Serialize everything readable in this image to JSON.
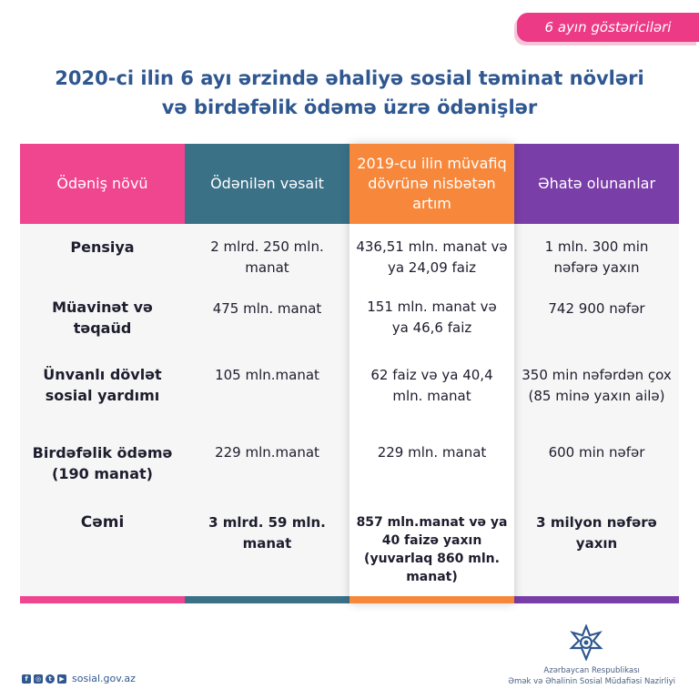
{
  "tag": "6 ayın göstəriciləri",
  "title": {
    "line1": "2020-ci ilin 6 ayı ərzində əhaliyə sosial təminat növləri",
    "line2": "və birdəfəlik ödəmə üzrə ödənişlər"
  },
  "table": {
    "headers": [
      "Ödəniş növü",
      "Ödənilən vəsait",
      "2019-cu ilin müvafiq dövrünə nisbətən artım",
      "Əhatə olunanlar"
    ],
    "rows": [
      [
        "Pensiya",
        "2 mlrd. 250 mln. manat",
        "436,51 mln. manat və ya 24,09 faiz",
        "1 mln. 300 min nəfərə yaxın"
      ],
      [
        "Müavinət və təqaüd",
        "475 mln. manat",
        "151 mln. manat və ya 46,6 faiz",
        "742 900 nəfər"
      ],
      [
        "Ünvanlı dövlət sosial yardımı",
        "105 mln.manat",
        "62 faiz və ya 40,4 mln. manat",
        "350 min nəfərdən çox (85 minə yaxın ailə)"
      ],
      [
        "Birdəfəlik ödəmə (190 manat)",
        "229 mln.manat",
        "229 mln. manat",
        "600 min nəfər"
      ],
      [
        "Cəmi",
        "3 mlrd. 59 mln. manat",
        "857 mln.manat və ya 40 faizə yaxın (yuvarlaq 860 mln. manat)",
        "3 milyon nəfərə yaxın"
      ]
    ]
  },
  "footer": {
    "website": "sosial.gov.az",
    "ministry_line1": "Azərbaycan Respublikası",
    "ministry_line2": "Əmək və Əhalinin Sosial Müdafiəsi Nazirliyi",
    "social_icons": [
      "facebook-icon",
      "instagram-icon",
      "twitter-icon",
      "youtube-icon"
    ]
  },
  "colors": {
    "pink": "#f0458f",
    "teal": "#3a7187",
    "orange": "#f7883b",
    "purple": "#7a3ea8",
    "title_blue": "#2f5790"
  }
}
